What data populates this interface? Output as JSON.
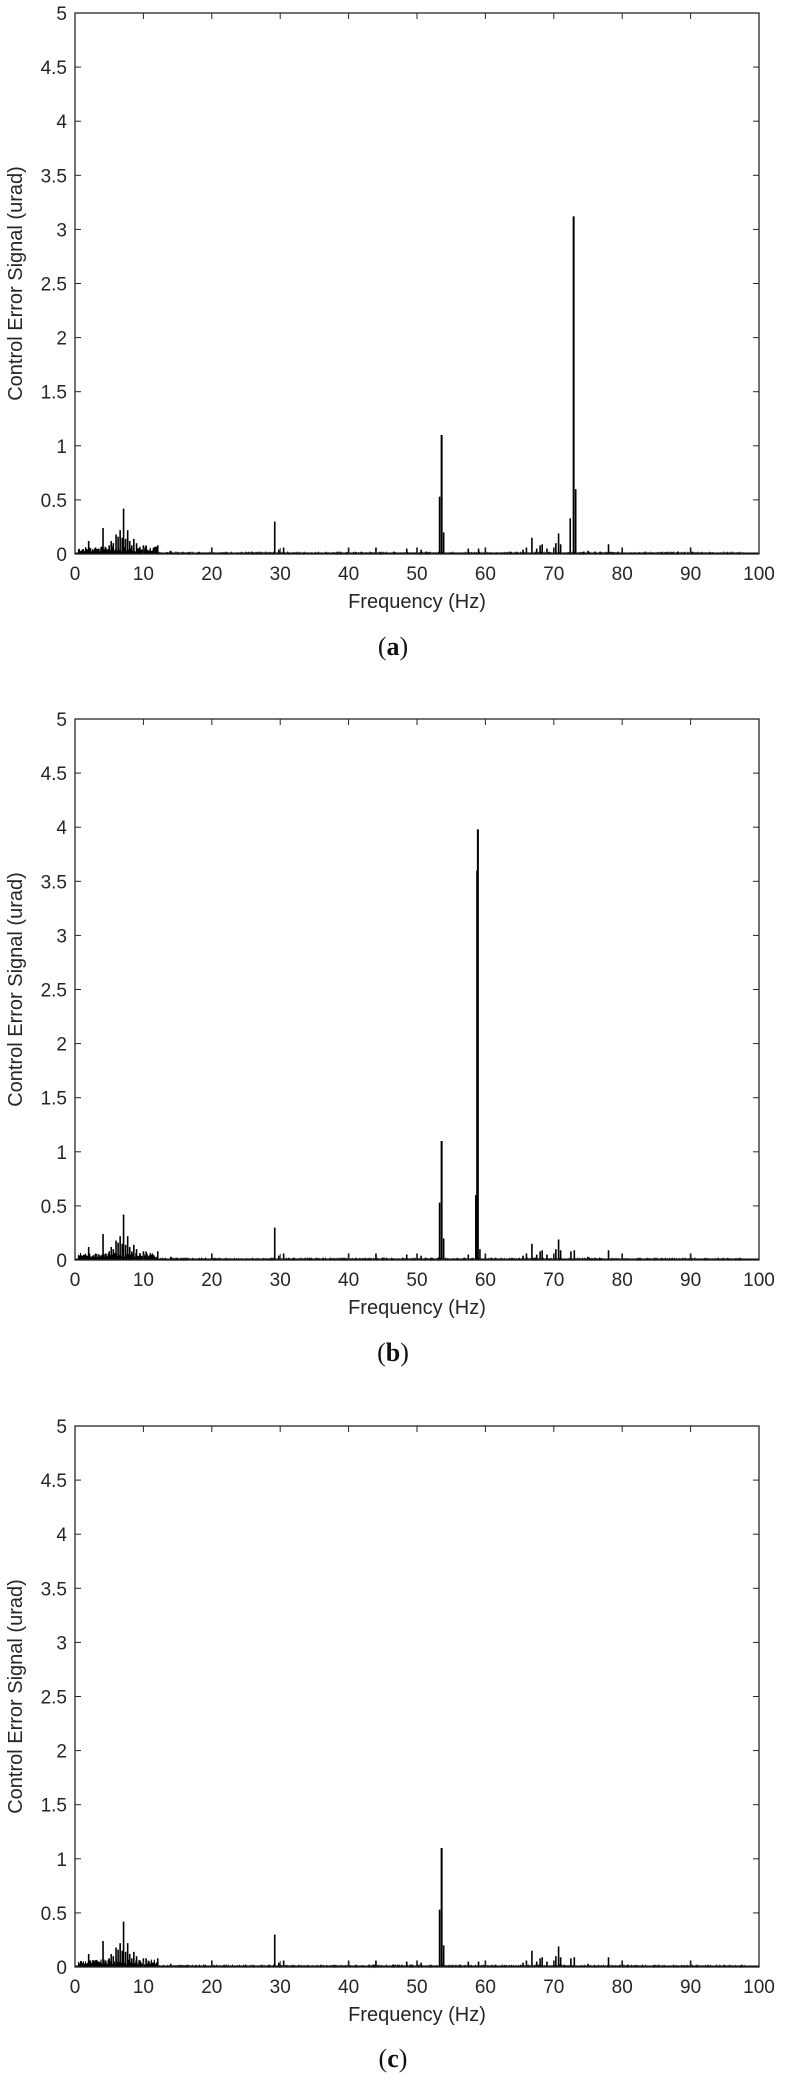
{
  "chart_data": [
    {
      "type": "line",
      "panel": "a",
      "caption_letter": "a",
      "title": "",
      "xlabel": "Frequency (Hz)",
      "ylabel": "Control Error Signal (urad)",
      "xlim": [
        0,
        100
      ],
      "ylim": [
        0,
        5
      ],
      "xticks": [
        "0",
        "10",
        "20",
        "30",
        "40",
        "50",
        "60",
        "70",
        "80",
        "90",
        "100"
      ],
      "yticks": [
        "0",
        "0.5",
        "1",
        "1.5",
        "2",
        "2.5",
        "3",
        "3.5",
        "4",
        "4.5",
        "5"
      ],
      "grid": false,
      "legend": null,
      "peaks": [
        {
          "x": 2.0,
          "y": 0.12
        },
        {
          "x": 2.6,
          "y": 0.04
        },
        {
          "x": 3.0,
          "y": 0.06
        },
        {
          "x": 3.5,
          "y": 0.05
        },
        {
          "x": 4.1,
          "y": 0.24
        },
        {
          "x": 4.5,
          "y": 0.06
        },
        {
          "x": 5.0,
          "y": 0.08
        },
        {
          "x": 5.3,
          "y": 0.12
        },
        {
          "x": 5.6,
          "y": 0.1
        },
        {
          "x": 6.0,
          "y": 0.18
        },
        {
          "x": 6.3,
          "y": 0.16
        },
        {
          "x": 6.6,
          "y": 0.22
        },
        {
          "x": 6.9,
          "y": 0.15
        },
        {
          "x": 7.1,
          "y": 0.42
        },
        {
          "x": 7.4,
          "y": 0.14
        },
        {
          "x": 7.7,
          "y": 0.22
        },
        {
          "x": 8.0,
          "y": 0.12
        },
        {
          "x": 8.3,
          "y": 0.08
        },
        {
          "x": 8.6,
          "y": 0.14
        },
        {
          "x": 9.0,
          "y": 0.1
        },
        {
          "x": 9.5,
          "y": 0.06
        },
        {
          "x": 10.0,
          "y": 0.08
        },
        {
          "x": 10.4,
          "y": 0.08
        },
        {
          "x": 11.0,
          "y": 0.03
        },
        {
          "x": 12.1,
          "y": 0.08
        },
        {
          "x": 14.0,
          "y": 0.03
        },
        {
          "x": 16.0,
          "y": 0.015
        },
        {
          "x": 20.0,
          "y": 0.06
        },
        {
          "x": 29.2,
          "y": 0.3
        },
        {
          "x": 29.8,
          "y": 0.04
        },
        {
          "x": 30.5,
          "y": 0.06
        },
        {
          "x": 40.0,
          "y": 0.06
        },
        {
          "x": 44.0,
          "y": 0.06
        },
        {
          "x": 48.5,
          "y": 0.05
        },
        {
          "x": 50.0,
          "y": 0.06
        },
        {
          "x": 50.6,
          "y": 0.04
        },
        {
          "x": 53.3,
          "y": 0.53
        },
        {
          "x": 53.6,
          "y": 1.1
        },
        {
          "x": 53.9,
          "y": 0.2
        },
        {
          "x": 57.5,
          "y": 0.05
        },
        {
          "x": 59.0,
          "y": 0.05
        },
        {
          "x": 60.0,
          "y": 0.06
        },
        {
          "x": 65.5,
          "y": 0.04
        },
        {
          "x": 66.0,
          "y": 0.06
        },
        {
          "x": 66.8,
          "y": 0.15
        },
        {
          "x": 67.5,
          "y": 0.05
        },
        {
          "x": 68.0,
          "y": 0.08
        },
        {
          "x": 68.3,
          "y": 0.09
        },
        {
          "x": 69.0,
          "y": 0.05
        },
        {
          "x": 70.0,
          "y": 0.06
        },
        {
          "x": 70.3,
          "y": 0.1
        },
        {
          "x": 70.7,
          "y": 0.19
        },
        {
          "x": 71.0,
          "y": 0.09
        },
        {
          "x": 72.4,
          "y": 0.33
        },
        {
          "x": 72.9,
          "y": 3.12
        },
        {
          "x": 73.2,
          "y": 0.6
        },
        {
          "x": 75.0,
          "y": 0.03
        },
        {
          "x": 78.0,
          "y": 0.09
        },
        {
          "x": 80.0,
          "y": 0.06
        },
        {
          "x": 82.5,
          "y": 0.015
        },
        {
          "x": 90.0,
          "y": 0.06
        },
        {
          "x": 93.0,
          "y": 0.01
        }
      ]
    },
    {
      "type": "line",
      "panel": "b",
      "caption_letter": "b",
      "title": "",
      "xlabel": "Frequency (Hz)",
      "ylabel": "Control Error Signal (urad)",
      "xlim": [
        0,
        100
      ],
      "ylim": [
        0,
        5
      ],
      "xticks": [
        "0",
        "10",
        "20",
        "30",
        "40",
        "50",
        "60",
        "70",
        "80",
        "90",
        "100"
      ],
      "yticks": [
        "0",
        "0.5",
        "1",
        "1.5",
        "2",
        "2.5",
        "3",
        "3.5",
        "4",
        "4.5",
        "5"
      ],
      "grid": false,
      "legend": null,
      "peaks": [
        {
          "x": 2.0,
          "y": 0.12
        },
        {
          "x": 2.6,
          "y": 0.04
        },
        {
          "x": 3.0,
          "y": 0.06
        },
        {
          "x": 3.5,
          "y": 0.05
        },
        {
          "x": 4.1,
          "y": 0.24
        },
        {
          "x": 4.5,
          "y": 0.06
        },
        {
          "x": 5.0,
          "y": 0.08
        },
        {
          "x": 5.3,
          "y": 0.12
        },
        {
          "x": 5.6,
          "y": 0.1
        },
        {
          "x": 6.0,
          "y": 0.18
        },
        {
          "x": 6.3,
          "y": 0.16
        },
        {
          "x": 6.6,
          "y": 0.22
        },
        {
          "x": 6.9,
          "y": 0.15
        },
        {
          "x": 7.1,
          "y": 0.42
        },
        {
          "x": 7.4,
          "y": 0.14
        },
        {
          "x": 7.7,
          "y": 0.22
        },
        {
          "x": 8.0,
          "y": 0.12
        },
        {
          "x": 8.3,
          "y": 0.08
        },
        {
          "x": 8.6,
          "y": 0.14
        },
        {
          "x": 9.0,
          "y": 0.1
        },
        {
          "x": 9.5,
          "y": 0.06
        },
        {
          "x": 10.0,
          "y": 0.08
        },
        {
          "x": 10.4,
          "y": 0.08
        },
        {
          "x": 11.0,
          "y": 0.03
        },
        {
          "x": 12.1,
          "y": 0.08
        },
        {
          "x": 14.0,
          "y": 0.03
        },
        {
          "x": 16.0,
          "y": 0.015
        },
        {
          "x": 20.0,
          "y": 0.06
        },
        {
          "x": 29.2,
          "y": 0.3
        },
        {
          "x": 29.8,
          "y": 0.04
        },
        {
          "x": 30.5,
          "y": 0.06
        },
        {
          "x": 40.0,
          "y": 0.06
        },
        {
          "x": 44.0,
          "y": 0.06
        },
        {
          "x": 48.5,
          "y": 0.05
        },
        {
          "x": 50.0,
          "y": 0.06
        },
        {
          "x": 50.6,
          "y": 0.04
        },
        {
          "x": 53.3,
          "y": 0.53
        },
        {
          "x": 53.6,
          "y": 1.1
        },
        {
          "x": 53.9,
          "y": 0.2
        },
        {
          "x": 57.5,
          "y": 0.05
        },
        {
          "x": 58.6,
          "y": 0.6
        },
        {
          "x": 58.8,
          "y": 3.6
        },
        {
          "x": 58.9,
          "y": 3.98
        },
        {
          "x": 59.2,
          "y": 0.1
        },
        {
          "x": 60.0,
          "y": 0.06
        },
        {
          "x": 65.5,
          "y": 0.04
        },
        {
          "x": 66.0,
          "y": 0.06
        },
        {
          "x": 66.8,
          "y": 0.15
        },
        {
          "x": 67.5,
          "y": 0.05
        },
        {
          "x": 68.0,
          "y": 0.08
        },
        {
          "x": 68.3,
          "y": 0.09
        },
        {
          "x": 69.0,
          "y": 0.05
        },
        {
          "x": 70.0,
          "y": 0.06
        },
        {
          "x": 70.3,
          "y": 0.1
        },
        {
          "x": 70.7,
          "y": 0.19
        },
        {
          "x": 71.0,
          "y": 0.09
        },
        {
          "x": 72.5,
          "y": 0.08
        },
        {
          "x": 73.0,
          "y": 0.09
        },
        {
          "x": 75.0,
          "y": 0.03
        },
        {
          "x": 78.0,
          "y": 0.09
        },
        {
          "x": 80.0,
          "y": 0.06
        },
        {
          "x": 82.5,
          "y": 0.015
        },
        {
          "x": 90.0,
          "y": 0.06
        },
        {
          "x": 93.0,
          "y": 0.01
        }
      ]
    },
    {
      "type": "line",
      "panel": "c",
      "caption_letter": "c",
      "title": "",
      "xlabel": "Frequency (Hz)",
      "ylabel": "Control Error Signal (urad)",
      "xlim": [
        0,
        100
      ],
      "ylim": [
        0,
        5
      ],
      "xticks": [
        "0",
        "10",
        "20",
        "30",
        "40",
        "50",
        "60",
        "70",
        "80",
        "90",
        "100"
      ],
      "yticks": [
        "0",
        "0.5",
        "1",
        "1.5",
        "2",
        "2.5",
        "3",
        "3.5",
        "4",
        "4.5",
        "5"
      ],
      "grid": false,
      "legend": null,
      "peaks": [
        {
          "x": 2.0,
          "y": 0.12
        },
        {
          "x": 2.6,
          "y": 0.04
        },
        {
          "x": 3.0,
          "y": 0.06
        },
        {
          "x": 3.5,
          "y": 0.05
        },
        {
          "x": 4.1,
          "y": 0.24
        },
        {
          "x": 4.5,
          "y": 0.06
        },
        {
          "x": 5.0,
          "y": 0.08
        },
        {
          "x": 5.3,
          "y": 0.12
        },
        {
          "x": 5.6,
          "y": 0.1
        },
        {
          "x": 6.0,
          "y": 0.18
        },
        {
          "x": 6.3,
          "y": 0.16
        },
        {
          "x": 6.6,
          "y": 0.22
        },
        {
          "x": 6.9,
          "y": 0.15
        },
        {
          "x": 7.1,
          "y": 0.42
        },
        {
          "x": 7.4,
          "y": 0.14
        },
        {
          "x": 7.7,
          "y": 0.22
        },
        {
          "x": 8.0,
          "y": 0.12
        },
        {
          "x": 8.3,
          "y": 0.08
        },
        {
          "x": 8.6,
          "y": 0.14
        },
        {
          "x": 9.0,
          "y": 0.1
        },
        {
          "x": 9.5,
          "y": 0.06
        },
        {
          "x": 10.0,
          "y": 0.08
        },
        {
          "x": 10.4,
          "y": 0.08
        },
        {
          "x": 11.0,
          "y": 0.03
        },
        {
          "x": 12.1,
          "y": 0.08
        },
        {
          "x": 14.0,
          "y": 0.03
        },
        {
          "x": 16.0,
          "y": 0.015
        },
        {
          "x": 20.0,
          "y": 0.06
        },
        {
          "x": 29.2,
          "y": 0.3
        },
        {
          "x": 29.8,
          "y": 0.04
        },
        {
          "x": 30.5,
          "y": 0.06
        },
        {
          "x": 40.0,
          "y": 0.06
        },
        {
          "x": 44.0,
          "y": 0.06
        },
        {
          "x": 48.5,
          "y": 0.05
        },
        {
          "x": 50.0,
          "y": 0.06
        },
        {
          "x": 50.6,
          "y": 0.04
        },
        {
          "x": 53.3,
          "y": 0.53
        },
        {
          "x": 53.6,
          "y": 1.1
        },
        {
          "x": 53.9,
          "y": 0.2
        },
        {
          "x": 57.5,
          "y": 0.05
        },
        {
          "x": 59.0,
          "y": 0.05
        },
        {
          "x": 60.0,
          "y": 0.06
        },
        {
          "x": 65.5,
          "y": 0.04
        },
        {
          "x": 66.0,
          "y": 0.06
        },
        {
          "x": 66.8,
          "y": 0.15
        },
        {
          "x": 67.5,
          "y": 0.05
        },
        {
          "x": 68.0,
          "y": 0.08
        },
        {
          "x": 68.3,
          "y": 0.09
        },
        {
          "x": 69.0,
          "y": 0.05
        },
        {
          "x": 70.0,
          "y": 0.06
        },
        {
          "x": 70.3,
          "y": 0.1
        },
        {
          "x": 70.7,
          "y": 0.19
        },
        {
          "x": 71.0,
          "y": 0.09
        },
        {
          "x": 72.5,
          "y": 0.08
        },
        {
          "x": 73.0,
          "y": 0.09
        },
        {
          "x": 75.0,
          "y": 0.03
        },
        {
          "x": 78.0,
          "y": 0.09
        },
        {
          "x": 80.0,
          "y": 0.06
        },
        {
          "x": 82.5,
          "y": 0.015
        },
        {
          "x": 90.0,
          "y": 0.06
        },
        {
          "x": 93.0,
          "y": 0.01
        }
      ]
    }
  ],
  "colors": {
    "line": "#000000",
    "axes": "#262626",
    "background": "#ffffff"
  }
}
